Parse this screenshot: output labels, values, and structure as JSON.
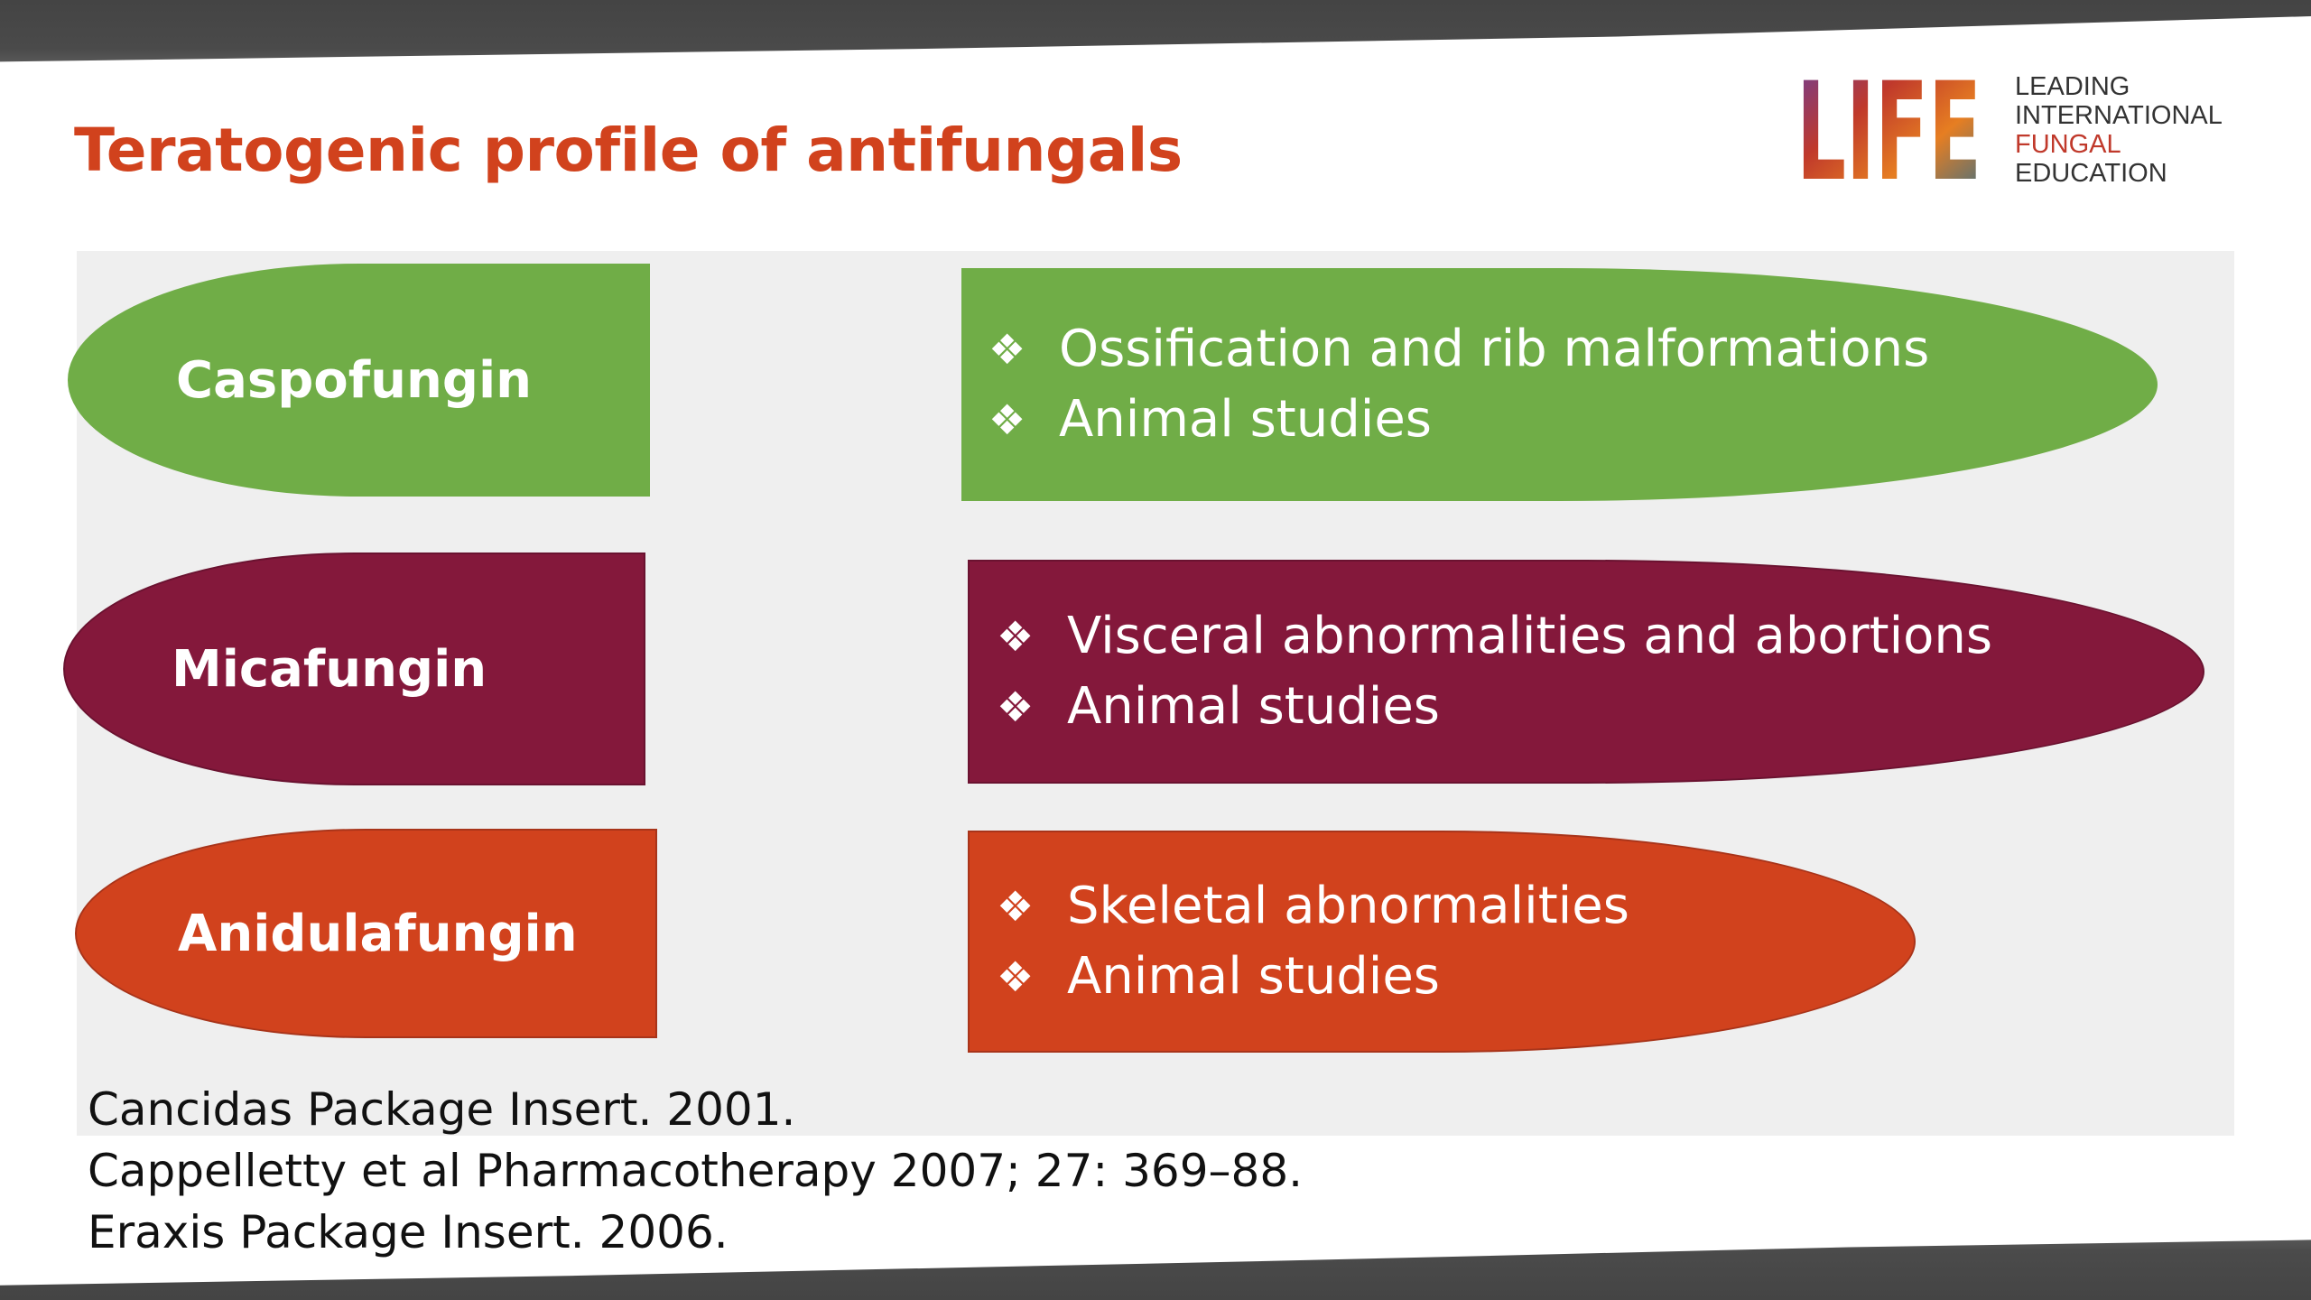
{
  "slide": {
    "title": "Teratogenic profile of antifungals"
  },
  "logo": {
    "mark_text": "LIFE",
    "lines": [
      "LEADING",
      "INTERNATIONAL",
      "FUNGAL",
      "EDUCATION"
    ]
  },
  "drugs": [
    {
      "name": "Caspofungin",
      "color": "#70ad47",
      "bullets": [
        "Ossification and rib malformations",
        "Animal studies"
      ]
    },
    {
      "name": "Micafungin",
      "color": "#84183b",
      "bullets": [
        "Visceral abnormalities and abortions",
        "Animal studies"
      ]
    },
    {
      "name": "Anidulafungin",
      "color": "#d1421d",
      "bullets": [
        "Skeletal abnormalities",
        "Animal studies"
      ]
    }
  ],
  "bullet_symbol": "❖",
  "references": [
    "Cancidas Package Insert. 2001.",
    "Cappelletty et al Pharmacotherapy 2007; 27: 369–88.",
    "Eraxis Package Insert. 2006."
  ]
}
